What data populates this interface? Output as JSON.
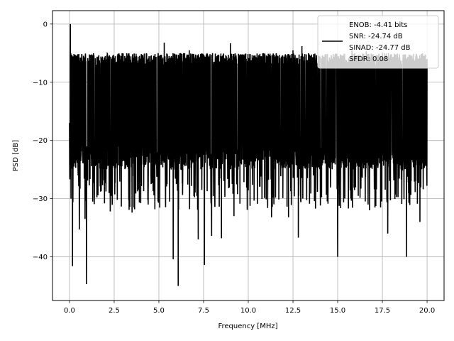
{
  "chart_data": {
    "type": "line",
    "title": "",
    "xlabel": "Frequency [MHz]",
    "ylabel": "PSD [dB]",
    "xlim": [
      -0.95,
      20.95
    ],
    "ylim": [
      -47.5,
      2.3
    ],
    "xticks": [
      0.0,
      2.5,
      5.0,
      7.5,
      10.0,
      12.5,
      15.0,
      17.5,
      20.0
    ],
    "xtick_labels": [
      "0.0",
      "2.5",
      "5.0",
      "7.5",
      "10.0",
      "12.5",
      "15.0",
      "17.5",
      "20.0"
    ],
    "yticks": [
      0,
      -10,
      -20,
      -30,
      -40
    ],
    "ytick_labels": [
      "0",
      "−10",
      "−20",
      "−30",
      "−40"
    ],
    "grid": true,
    "legend_position": "top-right",
    "series": [
      {
        "name": "",
        "color": "#000000",
        "x_range": [
          0.0,
          20.0
        ],
        "level_range": [
          -21,
          -7
        ],
        "noise_floor": -26,
        "dips": [
          {
            "x": 0.17,
            "y": -41.6
          },
          {
            "x": 0.55,
            "y": -35.3
          },
          {
            "x": 0.87,
            "y": -33.5
          },
          {
            "x": 0.95,
            "y": -44.7
          },
          {
            "x": 1.3,
            "y": -30.5
          },
          {
            "x": 2.28,
            "y": -32.2
          },
          {
            "x": 3.5,
            "y": -32.4
          },
          {
            "x": 4.4,
            "y": -31.0
          },
          {
            "x": 5.6,
            "y": -30.5
          },
          {
            "x": 5.8,
            "y": -40.4
          },
          {
            "x": 6.08,
            "y": -45.0
          },
          {
            "x": 7.2,
            "y": -37.0
          },
          {
            "x": 7.55,
            "y": -41.4
          },
          {
            "x": 7.95,
            "y": -36.4
          },
          {
            "x": 8.5,
            "y": -36.8
          },
          {
            "x": 9.2,
            "y": -33.0
          },
          {
            "x": 11.3,
            "y": -33.2
          },
          {
            "x": 12.25,
            "y": -33.2
          },
          {
            "x": 12.8,
            "y": -36.7
          },
          {
            "x": 15.0,
            "y": -40.0
          },
          {
            "x": 16.7,
            "y": -31.0
          },
          {
            "x": 17.8,
            "y": -36.0
          },
          {
            "x": 18.85,
            "y": -40.0
          },
          {
            "x": 19.6,
            "y": -34.0
          }
        ],
        "peaks": [
          {
            "x": 0.05,
            "y": 0.0
          },
          {
            "x": 2.0,
            "y": -5.5
          },
          {
            "x": 5.3,
            "y": -3.2
          },
          {
            "x": 6.7,
            "y": -4.5
          },
          {
            "x": 8.0,
            "y": -5.0
          },
          {
            "x": 9.0,
            "y": -3.3
          },
          {
            "x": 12.5,
            "y": -4.5
          },
          {
            "x": 13.0,
            "y": -3.8
          },
          {
            "x": 15.8,
            "y": -4.5
          },
          {
            "x": 16.6,
            "y": -4.6
          },
          {
            "x": 17.5,
            "y": -4.9
          }
        ]
      }
    ],
    "legend": {
      "lines": [
        "ENOB: -4.41 bits",
        "SNR: -24.74 dB",
        "SINAD: -24.77 dB",
        "SFDR: 0.08"
      ]
    }
  }
}
